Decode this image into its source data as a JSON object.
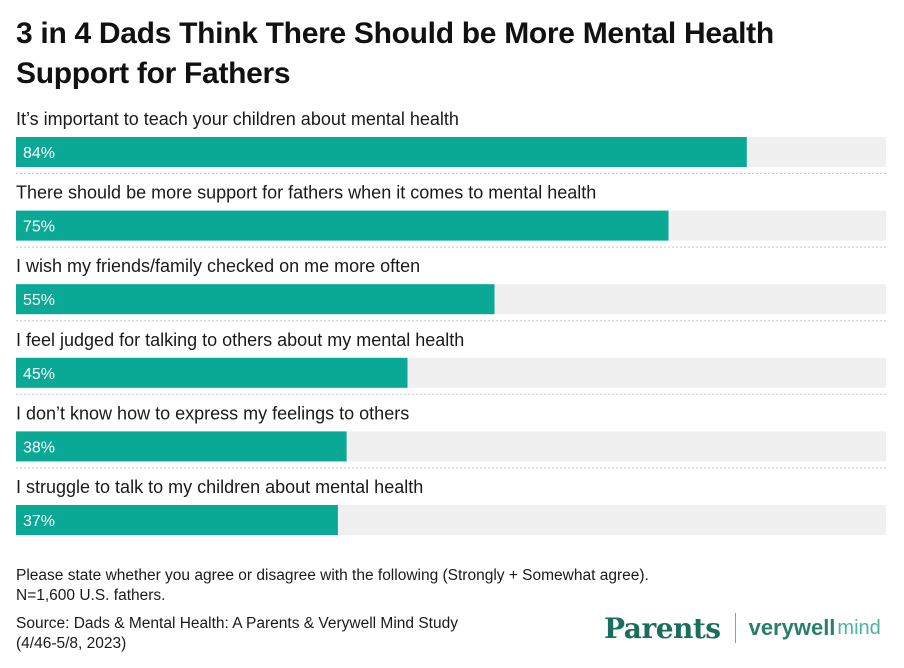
{
  "title": "3 in 4 Dads Think There Should be More Mental Health Support for Fathers",
  "colors": {
    "bar": "#0aa996",
    "track": "#f0f0f0",
    "divider": "#c9c9c9"
  },
  "chart_data": {
    "type": "bar",
    "orientation": "horizontal",
    "categories": [
      "It’s important to teach your children about mental health",
      "There should be more support for fathers when it comes to mental health",
      "I wish my friends/family checked on me more often",
      "I feel judged for talking to others about my mental health",
      "I don’t know how to express my feelings to others",
      "I struggle to talk to my children about mental health"
    ],
    "values": [
      84,
      75,
      55,
      45,
      38,
      37
    ],
    "value_labels": [
      "84%",
      "75%",
      "55%",
      "45%",
      "38%",
      "37%"
    ],
    "xlim": [
      0,
      100
    ],
    "grid": false
  },
  "footnote": {
    "question": "Please state whether you agree or disagree with the following (Strongly + Somewhat agree).",
    "sample": "N=1,600 U.S. fathers.",
    "source_line1": "Source: Dads & Mental Health: A Parents & Verywell Mind Study",
    "source_line2": "(4/46-5/8, 2023)"
  },
  "logos": {
    "parents": "Parents",
    "verywell": "verywell",
    "mind": "mind"
  }
}
